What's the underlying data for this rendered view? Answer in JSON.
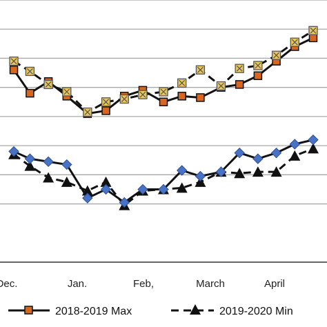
{
  "chart_data": {
    "type": "line",
    "categories": [
      "Dec.",
      "Jan.",
      "Feb,",
      "March",
      "April"
    ],
    "ylim": [
      0,
      9
    ],
    "gridlines": [
      2,
      3,
      4,
      5,
      6,
      7,
      8,
      9
    ],
    "grid": true,
    "legend_position": "bottom",
    "series": [
      {
        "name": "2018-2019 Max",
        "color": "#111111",
        "marker_color": "#d9661f",
        "line_style": "solid",
        "marker": "square",
        "x": [
          0.0,
          0.35,
          0.75,
          1.15,
          1.6,
          2.0,
          2.4,
          2.8,
          3.25,
          3.65,
          4.05,
          4.5,
          4.9,
          5.3,
          5.7,
          6.1,
          6.5
        ],
        "values": [
          6.6,
          5.8,
          6.2,
          5.7,
          5.1,
          5.2,
          5.7,
          5.9,
          5.5,
          5.7,
          5.65,
          6.0,
          6.1,
          6.4,
          6.9,
          7.4,
          7.7
        ]
      },
      {
        "name": "2019-2020 Min",
        "color": "#111111",
        "marker_color": "#111111",
        "line_style": "dashed",
        "marker": "triangle",
        "x": [
          0.0,
          0.35,
          0.75,
          1.15,
          1.6,
          2.0,
          2.4,
          2.8,
          3.25,
          3.65,
          4.05,
          4.5,
          4.9,
          5.3,
          5.7,
          6.1,
          6.5
        ],
        "values": [
          3.7,
          3.3,
          2.9,
          2.75,
          2.45,
          2.75,
          1.95,
          2.45,
          2.5,
          2.55,
          2.75,
          3.1,
          3.05,
          3.1,
          3.1,
          3.65,
          3.9
        ]
      },
      {
        "name": "",
        "color": "#111111",
        "marker_color": "#4a72c4",
        "line_style": "solid",
        "marker": "diamond",
        "x": [
          0.0,
          0.35,
          0.75,
          1.15,
          1.6,
          2.0,
          2.4,
          2.8,
          3.25,
          3.65,
          4.05,
          4.5,
          4.9,
          5.3,
          5.7,
          6.1,
          6.5
        ],
        "values": [
          3.8,
          3.55,
          3.45,
          3.35,
          2.2,
          2.5,
          2.05,
          2.5,
          2.5,
          3.15,
          2.95,
          3.1,
          3.75,
          3.55,
          3.75,
          4.05,
          4.2
        ]
      },
      {
        "name": "",
        "color": "#111111",
        "marker_color": "#e8c65a",
        "line_style": "dashed",
        "marker": "square-x",
        "x": [
          0.0,
          0.35,
          0.75,
          1.15,
          1.6,
          2.0,
          2.4,
          2.8,
          3.25,
          3.65,
          4.05,
          4.5,
          4.9,
          5.3,
          5.7,
          6.1,
          6.5
        ],
        "values": [
          6.9,
          6.55,
          6.1,
          5.85,
          5.15,
          5.5,
          5.6,
          5.75,
          5.85,
          6.15,
          6.6,
          6.05,
          6.65,
          6.75,
          7.1,
          7.55,
          7.95
        ]
      }
    ]
  }
}
